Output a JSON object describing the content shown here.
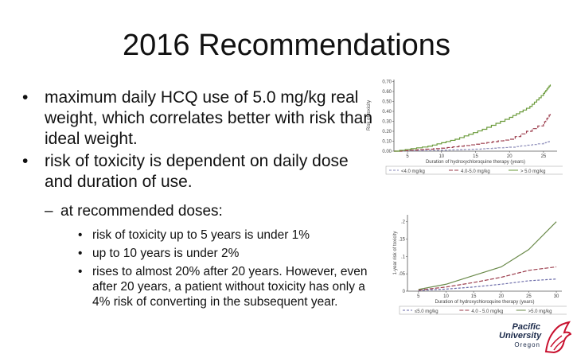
{
  "slide": {
    "title": "2016 Recommendations",
    "bullets": [
      "maximum daily HCQ use of 5.0 mg/kg real weight, which correlates better with risk than ideal weight.",
      "risk of toxicity is dependent on daily dose and duration of use."
    ],
    "sub_bullet": "at recommended doses:",
    "sub_sub_bullets": [
      "risk of toxicity up to 5 years is under 1%",
      "up to 10 years is under 2%",
      "rises to almost 20% after 20 years. However, even after 20 years, a patient without toxicity has only a 4% risk of converting in the subsequent year."
    ]
  },
  "chart_data": [
    {
      "type": "line",
      "ylabel": "Risk of toxicity",
      "xlabel": "Duration of hydroxychloroquine therapy (years)",
      "x_ticks": [
        5,
        10,
        15,
        20,
        25
      ],
      "y_ticks": [
        "0.00",
        "0.10",
        "0.20",
        "0.30",
        "0.40",
        "0.50",
        "0.60",
        "0.70"
      ],
      "xlim": [
        3,
        27
      ],
      "ylim": [
        0,
        0.72
      ],
      "legend": [
        "<4.0 mg/kg",
        "4.0-5.0 mg/kg",
        "> 5.0 mg/kg"
      ],
      "step": true,
      "series": [
        {
          "name": "<4.0 mg/kg",
          "color": "#8a8ab8",
          "x": [
            3,
            10,
            15,
            20,
            25,
            26
          ],
          "y": [
            0.0,
            0.01,
            0.02,
            0.04,
            0.08,
            0.1
          ]
        },
        {
          "name": "4.0-5.0 mg/kg",
          "color": "#9a3a4a",
          "x": [
            3,
            10,
            15,
            20,
            25,
            26
          ],
          "y": [
            0.0,
            0.03,
            0.07,
            0.12,
            0.28,
            0.38
          ]
        },
        {
          "name": "> 5.0 mg/kg",
          "color": "#6a9a3a",
          "x": [
            3,
            8,
            12,
            16,
            20,
            23,
            25,
            26
          ],
          "y": [
            0.0,
            0.05,
            0.12,
            0.22,
            0.34,
            0.45,
            0.58,
            0.67
          ]
        }
      ]
    },
    {
      "type": "line",
      "ylabel": "1-year risk of toxicity",
      "xlabel": "Duration of hydroxychloroquine therapy (years)",
      "x_ticks": [
        5,
        10,
        15,
        20,
        25,
        30
      ],
      "y_ticks": [
        "0",
        ".05",
        ".1",
        ".15",
        ".2"
      ],
      "xlim": [
        3,
        31
      ],
      "ylim": [
        0,
        0.22
      ],
      "legend": [
        "≤5.0 mg/kg",
        "4.0 - 5.0 mg/kg",
        ">5.0 mg/kg"
      ],
      "series": [
        {
          "name": "≤5.0 mg/kg",
          "color": "#6a6aa8",
          "x": [
            5,
            10,
            15,
            20,
            25,
            30
          ],
          "y": [
            0.002,
            0.006,
            0.012,
            0.02,
            0.03,
            0.035
          ]
        },
        {
          "name": "4.0 - 5.0 mg/kg",
          "color": "#9a3a4a",
          "x": [
            5,
            10,
            15,
            20,
            25,
            30
          ],
          "y": [
            0.003,
            0.012,
            0.025,
            0.04,
            0.06,
            0.07
          ]
        },
        {
          "name": ">5.0 mg/kg",
          "color": "#6a8a4a",
          "x": [
            5,
            10,
            15,
            20,
            25,
            30
          ],
          "y": [
            0.005,
            0.02,
            0.045,
            0.07,
            0.12,
            0.2
          ]
        }
      ]
    }
  ],
  "logo": {
    "line1": "Pacific",
    "line2": "University",
    "line3": "Oregon",
    "accent": "#c8102e"
  }
}
